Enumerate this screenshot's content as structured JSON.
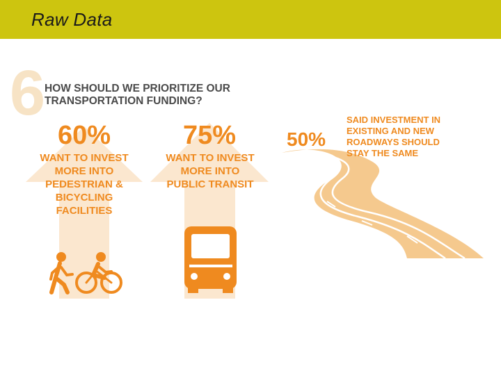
{
  "slide": {
    "title": "Raw Data"
  },
  "infographic": {
    "question_number": "6",
    "question": "HOW SHOULD WE PRIORITIZE OUR TRANSPORTATION FUNDING?",
    "items": [
      {
        "id": "pedestrian",
        "percent": "60%",
        "value": 60,
        "lines": [
          "WANT TO INVEST",
          "MORE INTO",
          "PEDESTRIAN &",
          "BICYCLING",
          "FACILITIES"
        ],
        "icons": [
          "walking-person-icon",
          "cyclist-icon"
        ]
      },
      {
        "id": "transit",
        "percent": "75%",
        "value": 75,
        "lines": [
          "WANT TO INVEST",
          "MORE INTO",
          "PUBLIC TRANSIT"
        ],
        "icons": [
          "bus-icon"
        ]
      },
      {
        "id": "roadways",
        "percent": "50%",
        "value": 50,
        "lines": [
          "SAID INVESTMENT IN",
          "EXISTING AND NEW",
          "ROADWAYS SHOULD",
          "STAY THE SAME"
        ],
        "icons": [
          "road-icon"
        ]
      }
    ],
    "colors": {
      "accent": "#ef8a1f",
      "arrow": "#fbe7cf",
      "road": "#f5c98e",
      "title_bar": "#cdc50f"
    }
  }
}
